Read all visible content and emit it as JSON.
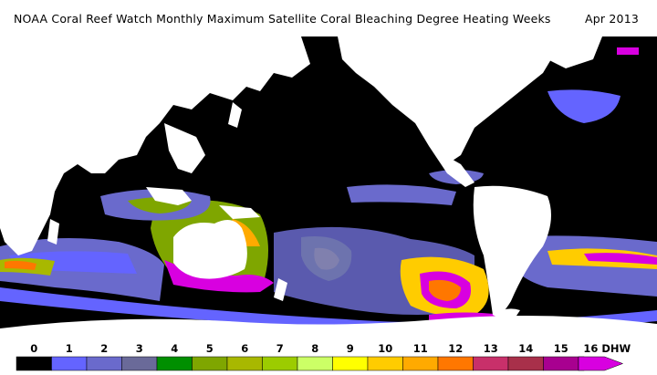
{
  "title": "NOAA Coral Reef Watch Monthly Maximum Satellite Coral Bleaching Degree Heating Weeks",
  "date": "Apr 2013",
  "map": {
    "land_color": "#ffffff",
    "ocean_no_stress_color": "#000000"
  },
  "legend": {
    "unit": "DHW",
    "ticks": [
      "0",
      "1",
      "2",
      "3",
      "4",
      "5",
      "6",
      "7",
      "8",
      "9",
      "10",
      "11",
      "12",
      "13",
      "14",
      "15",
      "16 DHW"
    ],
    "colors": [
      "#000000",
      "#6464ff",
      "#6a6acc",
      "#6a6a99",
      "#008f00",
      "#7fa600",
      "#a8b800",
      "#9ccc00",
      "#ccff66",
      "#ffff00",
      "#ffcc00",
      "#ffaa00",
      "#ff7700",
      "#c8306a",
      "#a8304a",
      "#a80090",
      "#d800e0"
    ]
  }
}
